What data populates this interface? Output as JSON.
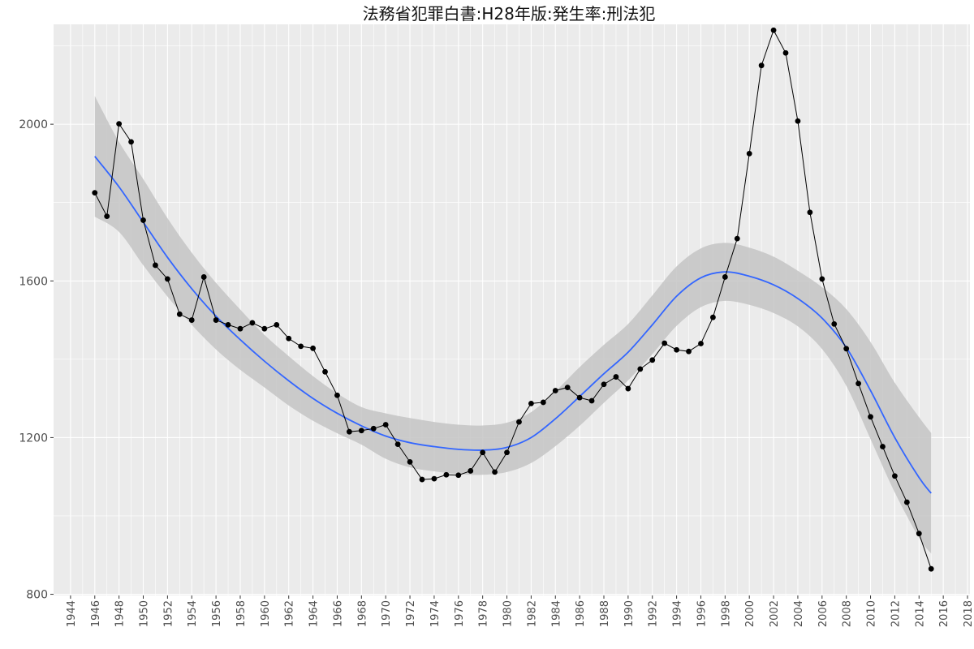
{
  "chart_data": {
    "type": "line",
    "title": "法務省犯罪白書:H28年版:発生率:刑法犯",
    "xlabel": "",
    "ylabel": "",
    "xlim": [
      1942.6,
      2018.2
    ],
    "ylim": [
      797,
      2255
    ],
    "grid": true,
    "x_ticks": [
      1944,
      1946,
      1948,
      1950,
      1952,
      1954,
      1956,
      1958,
      1960,
      1962,
      1964,
      1966,
      1968,
      1970,
      1972,
      1974,
      1976,
      1978,
      1980,
      1982,
      1984,
      1986,
      1988,
      1990,
      1992,
      1994,
      1996,
      1998,
      2000,
      2002,
      2004,
      2006,
      2008,
      2010,
      2012,
      2014,
      2016,
      2018
    ],
    "y_ticks": [
      800,
      1200,
      1600,
      2000
    ],
    "series": [
      {
        "type": "line+points",
        "x": [
          1946,
          1947,
          1948,
          1949,
          1950,
          1951,
          1952,
          1953,
          1954,
          1955,
          1956,
          1957,
          1958,
          1959,
          1960,
          1961,
          1962,
          1963,
          1964,
          1965,
          1966,
          1967,
          1968,
          1969,
          1970,
          1971,
          1972,
          1973,
          1974,
          1975,
          1976,
          1977,
          1978,
          1979,
          1980,
          1981,
          1982,
          1983,
          1984,
          1985,
          1986,
          1987,
          1988,
          1989,
          1990,
          1991,
          1992,
          1993,
          1994,
          1995,
          1996,
          1997,
          1998,
          1999,
          2000,
          2001,
          2002,
          2003,
          2004,
          2005,
          2006,
          2007,
          2008,
          2009,
          2010,
          2011,
          2012,
          2013,
          2014,
          2015
        ],
        "y": [
          1825,
          1765,
          2001,
          1955,
          1755,
          1640,
          1605,
          1515,
          1500,
          1610,
          1500,
          1488,
          1478,
          1493,
          1478,
          1488,
          1453,
          1433,
          1428,
          1368,
          1308,
          1215,
          1218,
          1223,
          1233,
          1183,
          1138,
          1093,
          1095,
          1105,
          1104,
          1115,
          1162,
          1112,
          1162,
          1240,
          1287,
          1290,
          1320,
          1328,
          1302,
          1294,
          1336,
          1355,
          1325,
          1375,
          1398,
          1441,
          1424,
          1420,
          1440,
          1507,
          1610,
          1708,
          1925,
          2150,
          2240,
          2182,
          2008,
          1775,
          1605,
          1490,
          1427,
          1338,
          1253,
          1177,
          1102,
          1035,
          955,
          865
        ],
        "color": "#000000"
      },
      {
        "type": "smooth",
        "name": "",
        "x": [
          1946,
          1948,
          1950,
          1952,
          1954,
          1956,
          1958,
          1960,
          1962,
          1964,
          1966,
          1968,
          1970,
          1972,
          1974,
          1976,
          1978,
          1980,
          1982,
          1984,
          1986,
          1988,
          1990,
          1992,
          1994,
          1996,
          1998,
          2000,
          2002,
          2004,
          2006,
          2008,
          2010,
          2012,
          2014,
          2015
        ],
        "y": [
          1918,
          1840,
          1750,
          1660,
          1580,
          1510,
          1450,
          1395,
          1345,
          1300,
          1262,
          1230,
          1204,
          1187,
          1177,
          1170,
          1168,
          1175,
          1200,
          1248,
          1305,
          1363,
          1418,
          1488,
          1561,
          1608,
          1623,
          1612,
          1590,
          1555,
          1505,
          1430,
          1320,
          1200,
          1098,
          1058
        ],
        "ci_upper": [
          2072,
          1955,
          1860,
          1760,
          1672,
          1595,
          1527,
          1462,
          1408,
          1357,
          1313,
          1278,
          1262,
          1250,
          1240,
          1233,
          1231,
          1238,
          1265,
          1318,
          1380,
          1437,
          1490,
          1563,
          1637,
          1683,
          1697,
          1685,
          1662,
          1626,
          1584,
          1528,
          1444,
          1340,
          1252,
          1212
        ],
        "ci_lower": [
          1764,
          1725,
          1640,
          1560,
          1488,
          1425,
          1373,
          1328,
          1282,
          1243,
          1211,
          1182,
          1146,
          1124,
          1114,
          1107,
          1105,
          1112,
          1135,
          1178,
          1230,
          1289,
          1346,
          1413,
          1485,
          1533,
          1549,
          1539,
          1518,
          1484,
          1426,
          1332,
          1196,
          1060,
          944,
          904
        ],
        "color": "#3366ff",
        "band_color": "#c4c4c4"
      }
    ]
  }
}
